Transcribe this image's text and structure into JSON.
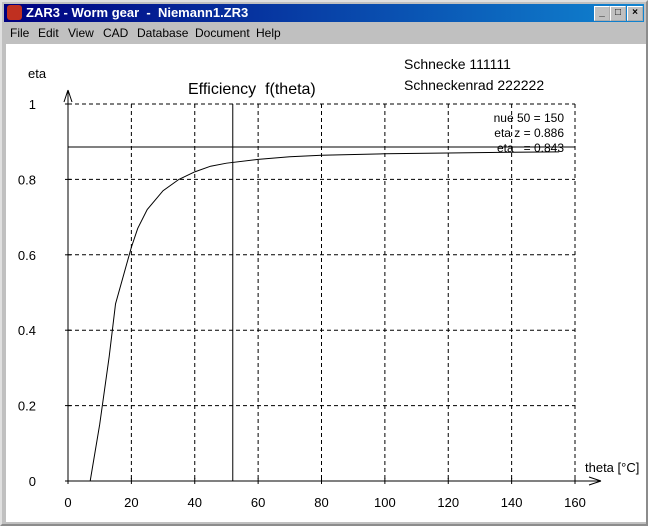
{
  "window": {
    "title": "ZAR3 - Worm gear  -  Niemann1.ZR3"
  },
  "menu": [
    "File",
    "Edit",
    "View",
    "CAD",
    "Database",
    "Document",
    "Help"
  ],
  "chart_data": {
    "type": "line",
    "title": "Efficiency  f(theta)",
    "x_label": "theta [°C]",
    "y_label": "eta",
    "info": [
      "Schnecke 111111",
      "Schneckenrad 222222"
    ],
    "annotations": [
      "nue 50 = 150",
      "eta z = 0.886",
      "eta   = 0.843"
    ],
    "x": [
      7,
      10,
      13,
      15,
      18,
      20,
      22,
      25,
      30,
      35,
      40,
      45,
      50,
      60,
      70,
      80,
      100,
      120,
      140,
      155
    ],
    "series": [
      {
        "color": "#000000",
        "values": [
          0,
          0.15,
          0.33,
          0.47,
          0.56,
          0.62,
          0.67,
          0.72,
          0.77,
          0.8,
          0.82,
          0.835,
          0.843,
          0.853,
          0.86,
          0.864,
          0.868,
          0.87,
          0.872,
          0.873
        ]
      }
    ],
    "reference_lines": {
      "x": 52,
      "y": 0.886
    },
    "xlim": [
      0,
      160
    ],
    "ylim": [
      0,
      1
    ],
    "xticks": [
      0,
      20,
      40,
      60,
      80,
      100,
      120,
      140,
      160
    ],
    "yticks": [
      0,
      0.2,
      0.4,
      0.6,
      0.8,
      1
    ],
    "grid": true
  }
}
